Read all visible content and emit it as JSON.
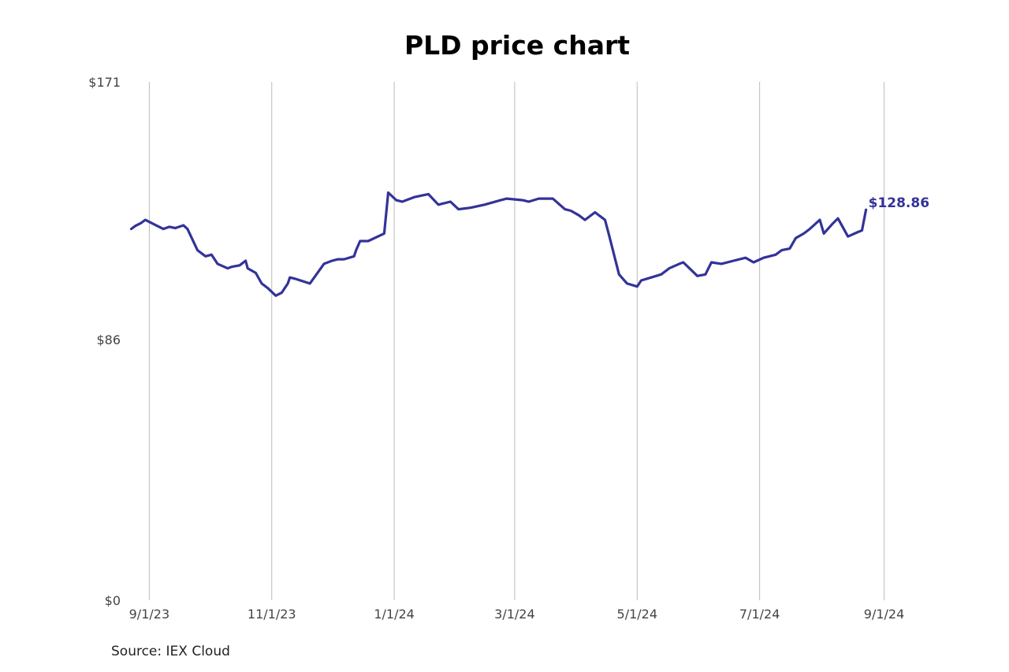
{
  "chart_data": {
    "type": "line",
    "title": "PLD price chart",
    "xlabel": "",
    "ylabel": "",
    "source": "Source: IEX Cloud",
    "grid": "vertical",
    "legend": "none",
    "line_color": "#333399",
    "grid_color": "#bbbbbb",
    "ylim": [
      0,
      171
    ],
    "y_ticks": [
      {
        "value": 0,
        "label": "$0"
      },
      {
        "value": 86,
        "label": "$86"
      },
      {
        "value": 171,
        "label": "$171"
      }
    ],
    "xlim": [
      "2023-08-13",
      "2024-09-11"
    ],
    "x_ticks": [
      {
        "date": "2023-09-01",
        "label": "9/1/23"
      },
      {
        "date": "2023-11-01",
        "label": "11/1/23"
      },
      {
        "date": "2024-01-01",
        "label": "1/1/24"
      },
      {
        "date": "2024-03-01",
        "label": "3/1/24"
      },
      {
        "date": "2024-05-01",
        "label": "5/1/24"
      },
      {
        "date": "2024-07-01",
        "label": "7/1/24"
      },
      {
        "date": "2024-09-01",
        "label": "9/1/24"
      }
    ],
    "end_label": "$128.86",
    "series": [
      {
        "x": [
          "2023-08-23",
          "2023-08-25",
          "2023-08-28",
          "2023-08-30",
          "2023-09-05",
          "2023-09-08",
          "2023-09-11",
          "2023-09-14",
          "2023-09-18",
          "2023-09-20",
          "2023-09-25",
          "2023-09-29",
          "2023-10-02",
          "2023-10-05",
          "2023-10-10",
          "2023-10-12",
          "2023-10-16",
          "2023-10-19",
          "2023-10-20",
          "2023-10-24",
          "2023-10-27",
          "2023-10-30",
          "2023-11-03",
          "2023-11-06",
          "2023-11-09",
          "2023-11-10",
          "2023-11-13",
          "2023-11-20",
          "2023-11-27",
          "2023-12-01",
          "2023-12-04",
          "2023-12-07",
          "2023-12-12",
          "2023-12-13",
          "2023-12-15",
          "2023-12-19",
          "2023-12-27",
          "2023-12-29",
          "2024-01-02",
          "2024-01-05",
          "2024-01-11",
          "2024-01-18",
          "2024-01-23",
          "2024-01-29",
          "2024-02-02",
          "2024-02-08",
          "2024-02-15",
          "2024-02-23",
          "2024-02-26",
          "2024-03-05",
          "2024-03-08",
          "2024-03-13",
          "2024-03-20",
          "2024-03-26",
          "2024-03-29",
          "2024-04-02",
          "2024-04-05",
          "2024-04-10",
          "2024-04-15",
          "2024-04-17",
          "2024-04-22",
          "2024-04-26",
          "2024-05-01",
          "2024-05-03",
          "2024-05-08",
          "2024-05-13",
          "2024-05-17",
          "2024-05-22",
          "2024-05-24",
          "2024-05-31",
          "2024-06-04",
          "2024-06-07",
          "2024-06-12",
          "2024-06-18",
          "2024-06-24",
          "2024-06-28",
          "2024-07-03",
          "2024-07-09",
          "2024-07-12",
          "2024-07-16",
          "2024-07-19",
          "2024-07-23",
          "2024-07-26",
          "2024-07-31",
          "2024-08-02",
          "2024-08-06",
          "2024-08-09",
          "2024-08-14",
          "2024-08-19",
          "2024-08-21",
          "2024-08-23"
        ],
        "values": [
          122.5,
          123.5,
          124.5,
          125.5,
          123.5,
          122.5,
          123.2,
          122.8,
          123.7,
          122.5,
          115.5,
          113.5,
          114.0,
          111.0,
          109.5,
          110.0,
          110.5,
          112.0,
          109.5,
          108.0,
          104.5,
          103.0,
          100.5,
          101.5,
          104.5,
          106.5,
          106.0,
          104.5,
          111.0,
          112.0,
          112.5,
          112.5,
          113.5,
          115.5,
          118.5,
          118.5,
          121.0,
          134.5,
          132.0,
          131.5,
          133.0,
          134.0,
          130.5,
          131.5,
          129.0,
          129.5,
          130.5,
          132.0,
          132.5,
          132.0,
          131.5,
          132.5,
          132.5,
          129.0,
          128.5,
          127.0,
          125.5,
          128.0,
          125.5,
          120.5,
          107.5,
          104.5,
          103.5,
          105.5,
          106.5,
          107.5,
          109.5,
          111.0,
          111.5,
          107.0,
          107.5,
          111.5,
          111.0,
          112.0,
          113.0,
          111.5,
          113.0,
          114.0,
          115.5,
          116.0,
          119.5,
          121.0,
          122.5,
          125.5,
          121.0,
          124.0,
          126.0,
          120.0,
          121.5,
          122.0,
          128.86
        ]
      }
    ]
  }
}
